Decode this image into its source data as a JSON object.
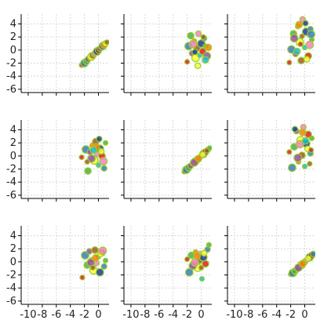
{
  "chart_data": {
    "type": "scatter",
    "layout": "scatter-plot-matrix",
    "rows": 3,
    "cols": 3,
    "xlim": [
      -11,
      1.5
    ],
    "ylim": [
      -6.5,
      5.5
    ],
    "x_ticks": [
      -10,
      -8,
      -6,
      -4,
      -2,
      0
    ],
    "y_ticks": [
      -6,
      -4,
      -2,
      0,
      2,
      4
    ],
    "x_tick_labels": [
      "-10",
      "-8",
      "-6",
      "-4",
      "-2",
      "0"
    ],
    "y_tick_labels": [
      "-6",
      "-4",
      "-2",
      "0",
      "2",
      "4"
    ],
    "grid": true,
    "point_colors": [
      "#e41a1c",
      "#377eb8",
      "#4daf4a",
      "#984ea3",
      "#ff7f00",
      "#ffff33",
      "#a65628",
      "#f781bf",
      "#17becf",
      "#1f3a93"
    ],
    "point_outline_color": "#9acd32",
    "panels": [
      {
        "row": 0,
        "col": 0,
        "x": [
          -2.4,
          -2.0,
          -1.7,
          -1.5,
          -1.2,
          -1.0,
          -0.8,
          -0.6,
          -0.4,
          -0.2,
          0.0,
          0.2,
          0.4,
          0.6,
          0.8,
          1.0,
          1.2
        ],
        "y": [
          -2.3,
          -2.0,
          -1.7,
          -1.4,
          -1.2,
          -1.0,
          -0.8,
          -0.6,
          -0.3,
          -0.2,
          0.0,
          0.2,
          0.4,
          0.6,
          0.8,
          1.0,
          1.2
        ]
      },
      {
        "row": 0,
        "col": 1,
        "x": [
          -2.0,
          -1.8,
          -1.5,
          -1.3,
          -1.0,
          -0.8,
          -0.6,
          -0.4,
          -0.2,
          0.0,
          0.2,
          0.4,
          0.6,
          0.8,
          1.0,
          -0.5,
          0.3,
          -1.2,
          0.6,
          -0.9
        ],
        "y": [
          -1.8,
          0.6,
          2.2,
          -0.5,
          1.4,
          -1.2,
          0.3,
          2.5,
          -0.8,
          1.0,
          -0.2,
          1.8,
          0.6,
          -0.9,
          0.4,
          -2.4,
          2.0,
          0.9,
          -1.5,
          -0.3
        ]
      },
      {
        "row": 0,
        "col": 2,
        "x": [
          -2.2,
          -1.9,
          -1.6,
          -1.3,
          -1.0,
          -0.7,
          -0.5,
          -0.3,
          0.0,
          0.2,
          0.5,
          0.8,
          1.0,
          -1.5,
          -0.8,
          0.3,
          -0.4,
          0.7,
          -1.1,
          0.1,
          -0.6,
          0.9
        ],
        "y": [
          -1.9,
          0.1,
          2.5,
          -0.6,
          3.6,
          1.2,
          -1.6,
          4.7,
          0.4,
          2.8,
          -0.9,
          3.2,
          1.6,
          1.8,
          3.9,
          -1.4,
          2.1,
          0.8,
          -0.2,
          4.1,
          0.9,
          2.4
        ]
      },
      {
        "row": 1,
        "col": 0,
        "x": [
          -2.4,
          -1.8,
          -1.5,
          -1.2,
          -0.9,
          -0.6,
          -0.4,
          -0.2,
          0.0,
          0.2,
          0.5,
          0.8,
          1.0,
          -1.0,
          -0.3,
          0.4,
          -1.6,
          0.7,
          -0.7,
          0.1
        ],
        "y": [
          -0.2,
          1.0,
          -2.3,
          0.6,
          1.6,
          -0.7,
          2.2,
          0.3,
          -1.4,
          1.1,
          0.0,
          -1.9,
          2.0,
          -0.4,
          1.4,
          0.7,
          -0.9,
          -0.8,
          0.9,
          2.6
        ]
      },
      {
        "row": 1,
        "col": 1,
        "x": [
          -2.4,
          -2.1,
          -1.8,
          -1.5,
          -1.2,
          -0.9,
          -0.6,
          -0.3,
          0.0,
          0.3,
          0.6,
          0.9,
          1.2,
          -1.0,
          -0.4,
          0.2,
          0.8
        ],
        "y": [
          -2.4,
          -2.1,
          -1.8,
          -1.5,
          -1.2,
          -0.9,
          -0.6,
          -0.3,
          0.0,
          0.3,
          0.6,
          0.9,
          1.2,
          -1.0,
          -0.4,
          0.2,
          0.8
        ]
      },
      {
        "row": 1,
        "col": 2,
        "x": [
          -2.2,
          -1.8,
          -1.5,
          -1.2,
          -0.9,
          -0.6,
          -0.4,
          -0.2,
          0.0,
          0.2,
          0.5,
          0.8,
          1.0,
          -1.0,
          -0.3,
          0.4,
          0.7,
          -0.7,
          0.1,
          -1.4,
          0.9
        ],
        "y": [
          0.6,
          -1.8,
          1.4,
          3.8,
          -0.9,
          2.4,
          0.1,
          4.4,
          -1.6,
          1.9,
          3.3,
          0.4,
          2.7,
          -0.3,
          3.6,
          1.1,
          -1.2,
          1.8,
          2.3,
          4.1,
          0.9
        ]
      },
      {
        "row": 2,
        "col": 0,
        "x": [
          -2.3,
          -1.9,
          -1.6,
          -1.3,
          -1.0,
          -0.7,
          -0.5,
          -0.3,
          0.0,
          0.2,
          0.5,
          0.8,
          1.0,
          -1.1,
          -0.4,
          0.3,
          -0.8,
          0.6
        ],
        "y": [
          -2.4,
          1.0,
          -0.5,
          1.6,
          0.3,
          -1.3,
          1.8,
          -0.2,
          0.8,
          -1.6,
          1.4,
          -0.7,
          0.2,
          -0.1,
          0.6,
          1.2,
          -0.9,
          1.7
        ]
      },
      {
        "row": 2,
        "col": 1,
        "x": [
          -2.0,
          -1.7,
          -1.4,
          -1.1,
          -0.8,
          -0.5,
          -0.3,
          -0.1,
          0.1,
          0.3,
          0.6,
          0.9,
          1.1,
          -1.2,
          -0.6,
          0.4,
          0.0,
          -0.9
        ],
        "y": [
          0.4,
          -1.6,
          1.0,
          -0.4,
          1.5,
          -0.9,
          0.2,
          1.2,
          -2.6,
          0.7,
          -0.3,
          1.9,
          2.6,
          -0.6,
          0.9,
          1.3,
          -0.9,
          -0.1
        ]
      },
      {
        "row": 2,
        "col": 2,
        "x": [
          -2.0,
          -1.7,
          -1.4,
          -1.1,
          -0.8,
          -0.5,
          -0.2,
          0.1,
          0.4,
          0.7,
          1.0,
          1.2,
          -1.5,
          -0.9,
          -0.3,
          0.5
        ],
        "y": [
          -1.9,
          -1.7,
          -1.4,
          -1.1,
          -0.8,
          -0.5,
          -0.2,
          0.1,
          0.4,
          0.7,
          1.0,
          1.2,
          -1.5,
          -0.9,
          -0.3,
          0.5
        ]
      }
    ]
  }
}
